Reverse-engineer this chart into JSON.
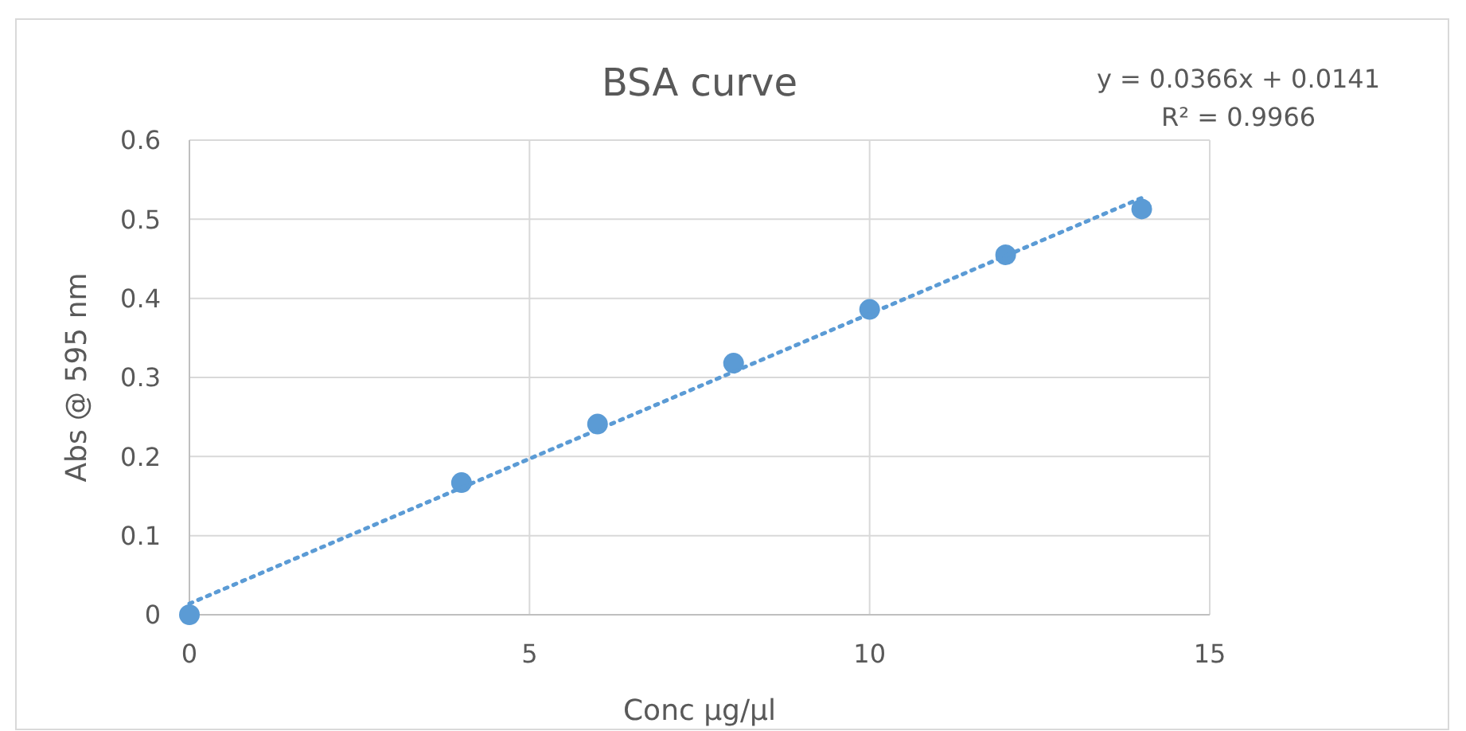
{
  "chart_data": {
    "type": "scatter",
    "title": "BSA curve",
    "xlabel": "Conc µg/µl",
    "ylabel": "Abs @ 595 nm",
    "x": [
      0,
      4,
      6,
      8,
      10,
      12,
      14
    ],
    "series": [
      {
        "color": "#5b9bd5",
        "values": [
          0,
          0.167,
          0.241,
          0.318,
          0.386,
          0.455,
          0.513
        ],
        "marker": "circle"
      },
      {
        "type": "line",
        "color": "#5b9bd5",
        "x": [
          0,
          14
        ],
        "values": [
          0.014,
          0.527
        ],
        "line_style": "dotted",
        "marker": "none"
      }
    ],
    "xlim": [
      0,
      15
    ],
    "xticks": [
      0,
      5,
      10,
      15
    ],
    "ylim": [
      0,
      0.6
    ],
    "yticks": [
      0,
      0.1,
      0.2,
      0.3,
      0.4,
      0.5,
      0.6
    ],
    "grid": true,
    "annotations": [
      "y = 0.0366x + 0.0141",
      "R² = 0.9966"
    ]
  }
}
